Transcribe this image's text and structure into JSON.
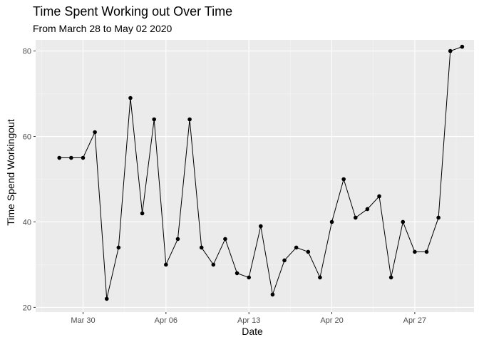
{
  "chart_data": {
    "type": "line",
    "title": "Time Spent Working out Over Time",
    "subtitle": "From March 28 to May 02 2020",
    "xlabel": "Date",
    "ylabel": "Time Spend Workingout",
    "x_ticks": [
      "Mar 30",
      "Apr 06",
      "Apr 13",
      "Apr 20",
      "Apr 27"
    ],
    "y_ticks": [
      20,
      40,
      60,
      80
    ],
    "ylim": [
      18.9,
      82.6
    ],
    "xlim": [
      "2020-03-26",
      "2020-05-02"
    ],
    "grid": true,
    "series": [
      {
        "points": [
          {
            "x": "2020-03-28",
            "y": 55
          },
          {
            "x": "2020-03-29",
            "y": 55
          },
          {
            "x": "2020-03-30",
            "y": 55
          },
          {
            "x": "2020-03-31",
            "y": 61
          },
          {
            "x": "2020-04-01",
            "y": 22
          },
          {
            "x": "2020-04-02",
            "y": 34
          },
          {
            "x": "2020-04-03",
            "y": 69
          },
          {
            "x": "2020-04-04",
            "y": 42
          },
          {
            "x": "2020-04-05",
            "y": 64
          },
          {
            "x": "2020-04-06",
            "y": 30
          },
          {
            "x": "2020-04-07",
            "y": 36
          },
          {
            "x": "2020-04-08",
            "y": 64
          },
          {
            "x": "2020-04-09",
            "y": 34
          },
          {
            "x": "2020-04-10",
            "y": 30
          },
          {
            "x": "2020-04-11",
            "y": 36
          },
          {
            "x": "2020-04-12",
            "y": 28
          },
          {
            "x": "2020-04-13",
            "y": 27
          },
          {
            "x": "2020-04-14",
            "y": 39
          },
          {
            "x": "2020-04-15",
            "y": 23
          },
          {
            "x": "2020-04-16",
            "y": 31
          },
          {
            "x": "2020-04-17",
            "y": 34
          },
          {
            "x": "2020-04-18",
            "y": 33
          },
          {
            "x": "2020-04-19",
            "y": 27
          },
          {
            "x": "2020-04-20",
            "y": 40
          },
          {
            "x": "2020-04-21",
            "y": 50
          },
          {
            "x": "2020-04-22",
            "y": 41
          },
          {
            "x": "2020-04-23",
            "y": 43
          },
          {
            "x": "2020-04-24",
            "y": 46
          },
          {
            "x": "2020-04-25",
            "y": 27
          },
          {
            "x": "2020-04-26",
            "y": 40
          },
          {
            "x": "2020-04-27",
            "y": 33
          },
          {
            "x": "2020-04-28",
            "y": 33
          },
          {
            "x": "2020-04-29",
            "y": 41
          },
          {
            "x": "2020-04-30",
            "y": 80
          },
          {
            "x": "2020-05-01",
            "y": 81
          }
        ]
      }
    ]
  },
  "colors": {
    "panel_background": "#EBEBEB",
    "grid_major": "#FFFFFF",
    "grid_minor": "#F5F5F5",
    "line": "#000000",
    "point": "#000000",
    "tick_label": "#4D4D4D"
  }
}
